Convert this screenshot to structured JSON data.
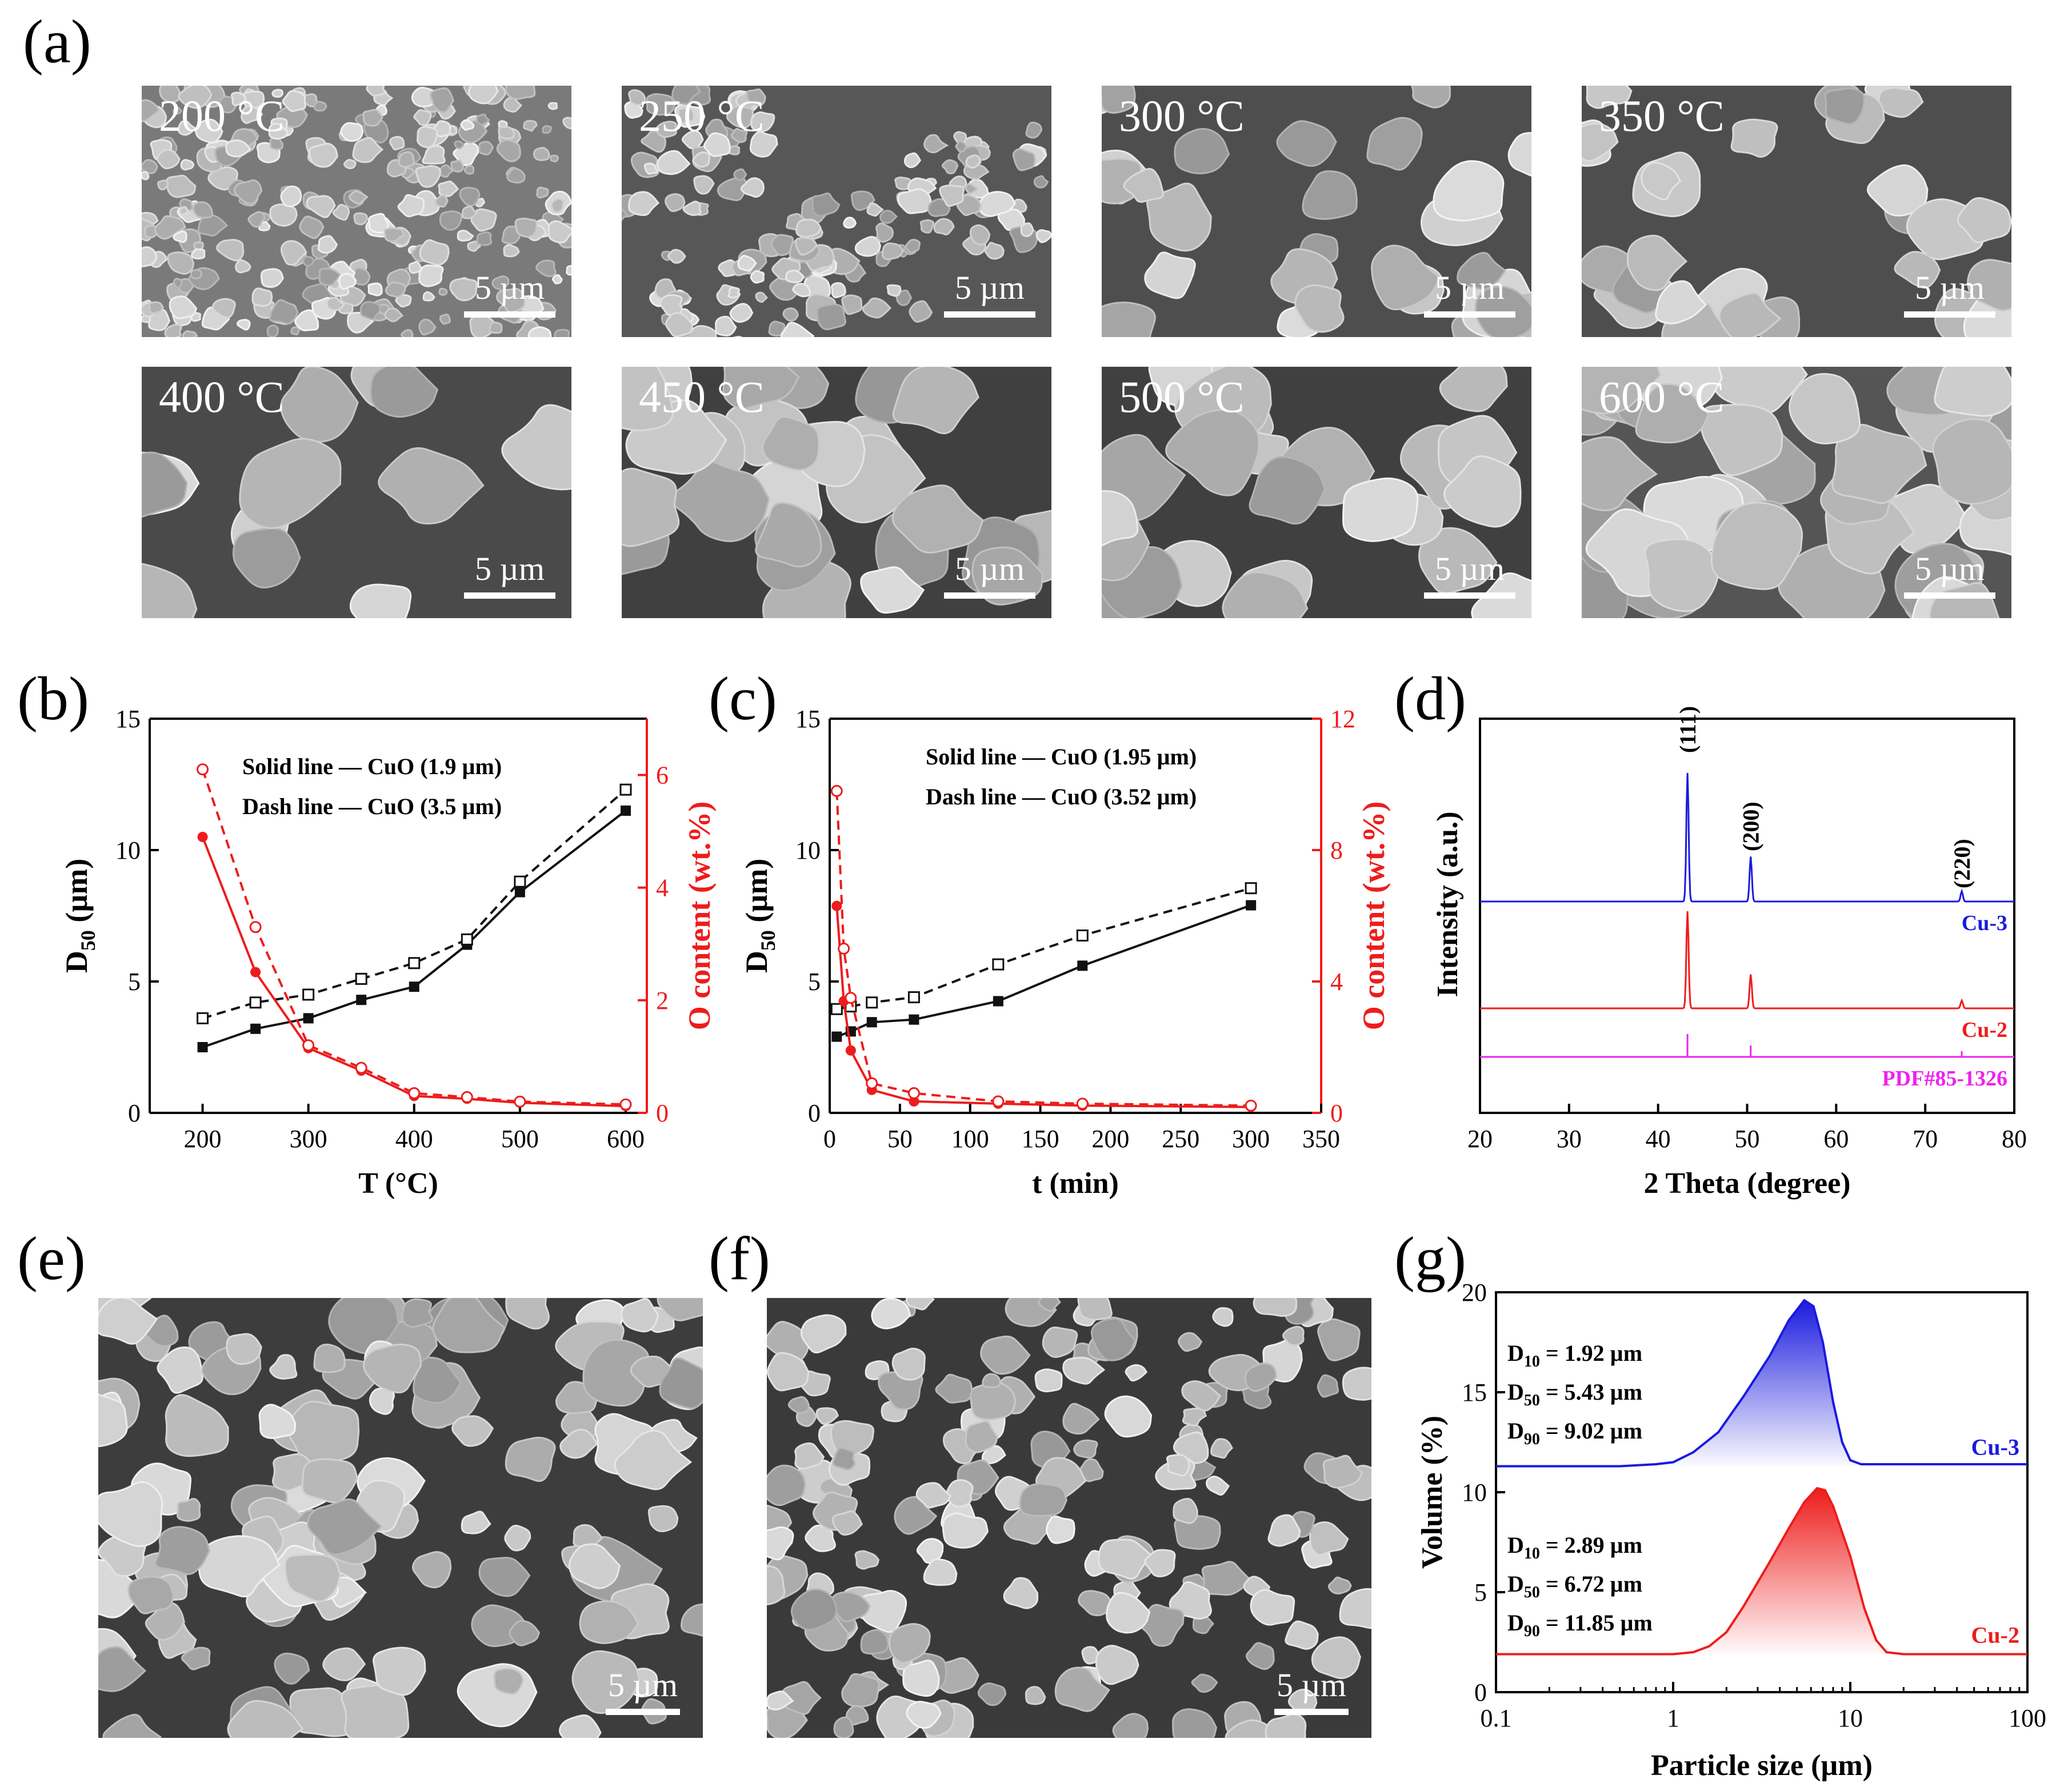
{
  "panel_labels": {
    "a": "(a)",
    "b": "(b)",
    "c": "(c)",
    "d": "(d)",
    "e": "(e)",
    "f": "(f)",
    "g": "(g)"
  },
  "sem_grid": [
    {
      "temp": "200 °C",
      "scale": "5 µm",
      "particles": "fine"
    },
    {
      "temp": "250 °C",
      "scale": "5 µm",
      "particles": "clusters"
    },
    {
      "temp": "300 °C",
      "scale": "5 µm",
      "particles": "medium"
    },
    {
      "temp": "350 °C",
      "scale": "5 µm",
      "particles": "medium"
    },
    {
      "temp": "400 °C",
      "scale": "5 µm",
      "particles": "large-sparse"
    },
    {
      "temp": "450 °C",
      "scale": "5 µm",
      "particles": "large"
    },
    {
      "temp": "500 °C",
      "scale": "5 µm",
      "particles": "large"
    },
    {
      "temp": "600 °C",
      "scale": "5 µm",
      "particles": "large-dense"
    }
  ],
  "sem_e": {
    "scale": "5 µm"
  },
  "sem_f": {
    "scale": "5 µm"
  },
  "colors": {
    "black": "#111111",
    "red": "#ee1c1c",
    "blue": "#1a1adf",
    "magenta": "#ee22ee"
  },
  "chart_data": [
    {
      "panel": "b",
      "type": "line",
      "xlabel": "T (°C)",
      "ylabel_main": "D",
      "ylabel_sub": "50",
      "ylabel_unit": " (µm)",
      "ylabel_right": "O content (wt.%)",
      "xlim": [
        150,
        620
      ],
      "ylim": [
        0,
        15
      ],
      "ylim_right": [
        0,
        7
      ],
      "xticks": [
        200,
        300,
        400,
        500,
        600
      ],
      "yticks": [
        0,
        5,
        10,
        15
      ],
      "yticks_right": [
        0,
        2,
        4,
        6
      ],
      "legend": [
        "Solid line — CuO (1.9 µm)",
        "Dash line — CuO (3.5 µm)"
      ],
      "series": [
        {
          "name": "Solid line — CuO (1.9 µm)",
          "axis": "left",
          "color": "#111111",
          "dash": false,
          "marker": "square-filled",
          "x": [
            200,
            250,
            300,
            350,
            400,
            450,
            500,
            600
          ],
          "y": [
            2.5,
            3.2,
            3.6,
            4.3,
            4.8,
            6.4,
            8.4,
            11.5
          ]
        },
        {
          "name": "Dash line — CuO (3.5 µm)",
          "axis": "left",
          "color": "#111111",
          "dash": true,
          "marker": "square-open",
          "x": [
            200,
            250,
            300,
            350,
            400,
            450,
            500,
            600
          ],
          "y": [
            3.6,
            4.2,
            4.5,
            5.1,
            5.7,
            6.6,
            8.8,
            12.3
          ]
        },
        {
          "name": "Solid line — CuO (1.9 µm)",
          "axis": "right",
          "color": "#ee1c1c",
          "dash": false,
          "marker": "circle-filled",
          "x": [
            200,
            250,
            300,
            350,
            400,
            450,
            500,
            600
          ],
          "y": [
            4.9,
            2.5,
            1.15,
            0.75,
            0.3,
            0.25,
            0.18,
            0.12
          ]
        },
        {
          "name": "Dash line — CuO (3.5 µm)",
          "axis": "right",
          "color": "#ee1c1c",
          "dash": true,
          "marker": "circle-open",
          "x": [
            200,
            250,
            300,
            350,
            400,
            450,
            500,
            600
          ],
          "y": [
            6.1,
            3.3,
            1.2,
            0.8,
            0.35,
            0.28,
            0.2,
            0.15
          ]
        }
      ]
    },
    {
      "panel": "c",
      "type": "line",
      "xlabel": "t (min)",
      "ylabel_main": "D",
      "ylabel_sub": "50",
      "ylabel_unit": " (µm)",
      "ylabel_right": "O content (wt.%)",
      "xlim": [
        0,
        350
      ],
      "ylim": [
        0,
        15
      ],
      "ylim_right": [
        0,
        12
      ],
      "xticks": [
        0,
        50,
        100,
        150,
        200,
        250,
        300,
        350
      ],
      "yticks": [
        0,
        5,
        10,
        15
      ],
      "yticks_right": [
        0,
        4,
        8,
        12
      ],
      "legend": [
        "Solid line — CuO (1.95 µm)",
        "Dash line — CuO (3.52 µm)"
      ],
      "series": [
        {
          "name": "Solid line — CuO (1.95 µm)",
          "axis": "left",
          "color": "#111111",
          "dash": false,
          "marker": "square-filled",
          "x": [
            5,
            15,
            30,
            60,
            120,
            180,
            300
          ],
          "y": [
            2.9,
            3.1,
            3.45,
            3.55,
            4.25,
            5.6,
            7.9
          ]
        },
        {
          "name": "Dash line — CuO (3.52 µm)",
          "axis": "left",
          "color": "#111111",
          "dash": true,
          "marker": "square-open",
          "x": [
            5,
            15,
            30,
            60,
            120,
            180,
            300
          ],
          "y": [
            3.95,
            4.05,
            4.2,
            4.4,
            5.65,
            6.75,
            8.55
          ]
        },
        {
          "name": "Solid line — CuO (1.95 µm)",
          "axis": "right",
          "color": "#ee1c1c",
          "dash": false,
          "marker": "circle-filled",
          "x": [
            5,
            10,
            15,
            30,
            60,
            120,
            180,
            300
          ],
          "y": [
            6.3,
            3.4,
            1.9,
            0.7,
            0.35,
            0.28,
            0.22,
            0.18
          ]
        },
        {
          "name": "Dash line — CuO (3.52 µm)",
          "axis": "right",
          "color": "#ee1c1c",
          "dash": true,
          "marker": "circle-open",
          "x": [
            5,
            10,
            15,
            30,
            60,
            120,
            180,
            300
          ],
          "y": [
            9.8,
            5.0,
            3.5,
            0.9,
            0.6,
            0.35,
            0.28,
            0.22
          ]
        }
      ]
    },
    {
      "panel": "d",
      "type": "line",
      "xlabel": "2 Theta (degree)",
      "ylabel": "Intensity (a.u.)",
      "xlim": [
        20,
        80
      ],
      "xticks": [
        20,
        30,
        40,
        50,
        60,
        70,
        80
      ],
      "peak_labels": [
        "(111)",
        "(200)",
        "(220)"
      ],
      "peaks_2theta": [
        43.3,
        50.4,
        74.1
      ],
      "series": [
        {
          "name": "Cu-3",
          "color": "#1a1adf",
          "peak_heights": [
            1.0,
            0.35,
            0.08
          ]
        },
        {
          "name": "Cu-2",
          "color": "#ee1c1c",
          "peak_heights": [
            1.0,
            0.35,
            0.08
          ]
        },
        {
          "name": "PDF#85-1326",
          "color": "#ee22ee",
          "peak_heights": [
            1.0,
            0.5,
            0.25
          ]
        }
      ]
    },
    {
      "panel": "g",
      "type": "area",
      "xlabel": "Particle size (µm)",
      "ylabel": "Volume (%)",
      "xscale": "log",
      "xlim": [
        0.1,
        100
      ],
      "ylim": [
        0,
        20
      ],
      "xticks": [
        0.1,
        1,
        10,
        100
      ],
      "xtick_labels": [
        "0.1",
        "1",
        "10",
        "100"
      ],
      "yticks": [
        0,
        5,
        10,
        15,
        20
      ],
      "series": [
        {
          "name": "Cu-3",
          "color": "#1a1adf",
          "baseline": 11.3,
          "stats": [
            "= 1.92 µm",
            "= 5.43 µm",
            "= 9.02 µm"
          ],
          "x": [
            0.1,
            0.5,
            0.8,
            1.0,
            1.3,
            1.8,
            2.5,
            3.5,
            4.5,
            5.5,
            6.2,
            7.0,
            8.0,
            9.0,
            10.0,
            11.5,
            20,
            100
          ],
          "y": [
            11.3,
            11.3,
            11.4,
            11.5,
            12.0,
            13.0,
            14.8,
            16.8,
            18.6,
            19.6,
            19.3,
            17.5,
            14.5,
            12.5,
            11.6,
            11.4,
            11.4,
            11.4
          ]
        },
        {
          "name": "Cu-2",
          "color": "#ee1c1c",
          "baseline": 1.9,
          "stats": [
            "= 2.89 µm",
            "= 6.72 µm",
            "= 11.85 µm"
          ],
          "x": [
            0.1,
            0.5,
            1.0,
            1.3,
            1.6,
            2.0,
            2.5,
            3.5,
            4.5,
            5.5,
            6.5,
            7.2,
            8.0,
            10.0,
            12.0,
            14.0,
            16.0,
            20,
            100
          ],
          "y": [
            1.9,
            1.9,
            1.9,
            2.0,
            2.3,
            3.0,
            4.3,
            6.5,
            8.2,
            9.5,
            10.2,
            10.1,
            9.3,
            6.8,
            4.2,
            2.6,
            2.0,
            1.9,
            1.9
          ]
        }
      ]
    }
  ]
}
